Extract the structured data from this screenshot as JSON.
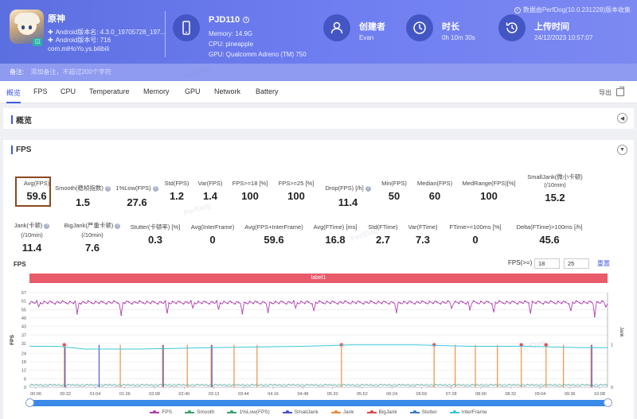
{
  "header": {
    "source_text": "数据由PerfDog(10.0.231228)版本收集",
    "app": {
      "name": "原神",
      "android_version_name": "Android版本名: 4.3.0_19705728_197...",
      "android_version_code": "Android版本号: 716",
      "package": "com.miHoYo.ys.bilibili"
    },
    "device": {
      "name": "PJD110",
      "memory": "Memory: 14.9G",
      "cpu": "CPU: pineapple",
      "gpu": "GPU: Qualcomm Adreno (TM) 750"
    },
    "creator": {
      "label": "创建者",
      "value": "Evan"
    },
    "duration": {
      "label": "时长",
      "value": "0h 10m 30s"
    },
    "upload": {
      "label": "上传时间",
      "value": "24/12/2023 10:57:07"
    },
    "note_label": "备注:",
    "note_placeholder": "添加备注，不超过200个字符"
  },
  "tabs": [
    "概览",
    "FPS",
    "CPU",
    "Temperature",
    "Memory",
    "GPU",
    "Network",
    "Battery"
  ],
  "export_label": "导出",
  "overview": {
    "title": "概览"
  },
  "fps": {
    "title": "FPS",
    "metrics_row1": [
      {
        "label": "Avg(FPS)",
        "value": "59.6"
      },
      {
        "label": "Smooth(稳帧指数)",
        "value": "1.5",
        "help": true
      },
      {
        "label": "1%Low(FPS)",
        "value": "27.6",
        "help": true
      },
      {
        "label": "Std(FPS)",
        "value": "1.2"
      },
      {
        "label": "Var(FPS)",
        "value": "1.4"
      },
      {
        "label": "FPS>=18 [%]",
        "value": "100"
      },
      {
        "label": "FPS>=25 [%]",
        "value": "100"
      },
      {
        "label": "Drop(FPS) [/h]",
        "value": "11.4",
        "help": true
      },
      {
        "label": "Min(FPS)",
        "value": "50"
      },
      {
        "label": "Median(FPS)",
        "value": "60"
      },
      {
        "label": "MedRange(FPS)[%]",
        "value": "100"
      },
      {
        "label": "SmallJank(微小卡顿)",
        "label2": "(/10min)",
        "value": "15.2"
      }
    ],
    "metrics_row2": [
      {
        "label": "Jank(卡顿)",
        "label2": "(/10min)",
        "value": "11.4",
        "help": true
      },
      {
        "label": "BigJank(严重卡顿)",
        "label2": "(/10min)",
        "value": "7.6",
        "help": true
      },
      {
        "label": "Stutter(卡顿率) [%]",
        "value": "0.3"
      },
      {
        "label": "Avg(InterFrame)",
        "value": "0"
      },
      {
        "label": "Avg(FPS+InterFrame)",
        "value": "59.6"
      },
      {
        "label": "Avg(FTime) [ms]",
        "value": "16.8"
      },
      {
        "label": "Std(FTime)",
        "value": "2.7"
      },
      {
        "label": "Var(FTime)",
        "value": "7.3"
      },
      {
        "label": "FTime>=100ms [%]",
        "value": "0"
      },
      {
        "label": "Delta(FTime)>100ms [/h]",
        "value": "45.6"
      }
    ],
    "chart_header": "FPS",
    "fps_threshold_label": "FPS(>=)",
    "threshold1": "18",
    "threshold2": "25",
    "reset_label": "重置",
    "label_bar": "label1",
    "watermark": "PerfDog"
  },
  "chart_data": {
    "type": "line",
    "y_left_label": "FPS",
    "y_right_label": "Jank",
    "y_left_ticks": [
      "67",
      "61",
      "55",
      "49",
      "43",
      "37",
      "31",
      "24",
      "18",
      "12",
      "6",
      "0"
    ],
    "y_right_ticks": [
      "1",
      "0"
    ],
    "x_ticks": [
      "00:00",
      "00:32",
      "01:04",
      "01:36",
      "02:08",
      "02:40",
      "03:12",
      "03:44",
      "04:16",
      "04:48",
      "05:20",
      "05:52",
      "06:24",
      "06:56",
      "07:28",
      "08:00",
      "08:32",
      "09:04",
      "09:36",
      "10:08"
    ],
    "x_range_s": [
      0,
      630
    ],
    "y_left_range": [
      0,
      67
    ],
    "fps_series": {
      "name": "FPS",
      "color": "#b03fb0",
      "baseline": 60,
      "dips": [
        {
          "t": 10,
          "v": 57
        },
        {
          "t": 52,
          "v": 52
        },
        {
          "t": 100,
          "v": 51
        },
        {
          "t": 150,
          "v": 52
        },
        {
          "t": 178,
          "v": 56
        },
        {
          "t": 205,
          "v": 55
        },
        {
          "t": 232,
          "v": 52
        },
        {
          "t": 260,
          "v": 53
        },
        {
          "t": 290,
          "v": 56
        },
        {
          "t": 310,
          "v": 54
        },
        {
          "t": 400,
          "v": 53
        },
        {
          "t": 460,
          "v": 56
        },
        {
          "t": 480,
          "v": 55
        },
        {
          "t": 505,
          "v": 53
        },
        {
          "t": 545,
          "v": 52
        },
        {
          "t": 590,
          "v": 54
        },
        {
          "t": 615,
          "v": 50
        },
        {
          "t": 628,
          "v": 57
        }
      ]
    },
    "interframe_series": {
      "name": "InterFrame",
      "color": "#3cc8d8",
      "points": [
        {
          "t": 0,
          "v": 29
        },
        {
          "t": 30,
          "v": 29
        },
        {
          "t": 60,
          "v": 27
        },
        {
          "t": 120,
          "v": 27
        },
        {
          "t": 200,
          "v": 28
        },
        {
          "t": 300,
          "v": 29
        },
        {
          "t": 350,
          "v": 30
        },
        {
          "t": 420,
          "v": 30
        },
        {
          "t": 480,
          "v": 29
        },
        {
          "t": 540,
          "v": 29
        },
        {
          "t": 600,
          "v": 28
        },
        {
          "t": 630,
          "v": 28
        }
      ]
    },
    "bigjank_times": [
      38,
      99,
      145,
      172,
      198,
      223,
      248,
      340,
      441,
      464,
      486,
      510,
      536,
      563,
      582,
      612
    ],
    "bigjank_markers": [
      38,
      340,
      441,
      536,
      563
    ],
    "smalljank_times": [
      38,
      75,
      145,
      198,
      612
    ],
    "legend": [
      {
        "name": "FPS",
        "color": "#b03fb0"
      },
      {
        "name": "Smooth",
        "color": "#3aa26a"
      },
      {
        "name": "1%Low(FPS)",
        "color": "#3aa26a"
      },
      {
        "name": "SmallJank",
        "color": "#4b4ed0"
      },
      {
        "name": "Jank",
        "color": "#e8893a"
      },
      {
        "name": "BigJank",
        "color": "#e04848"
      },
      {
        "name": "Stutter",
        "color": "#3a7cc8"
      },
      {
        "name": "InterFrame",
        "color": "#3cc8d8"
      }
    ]
  }
}
